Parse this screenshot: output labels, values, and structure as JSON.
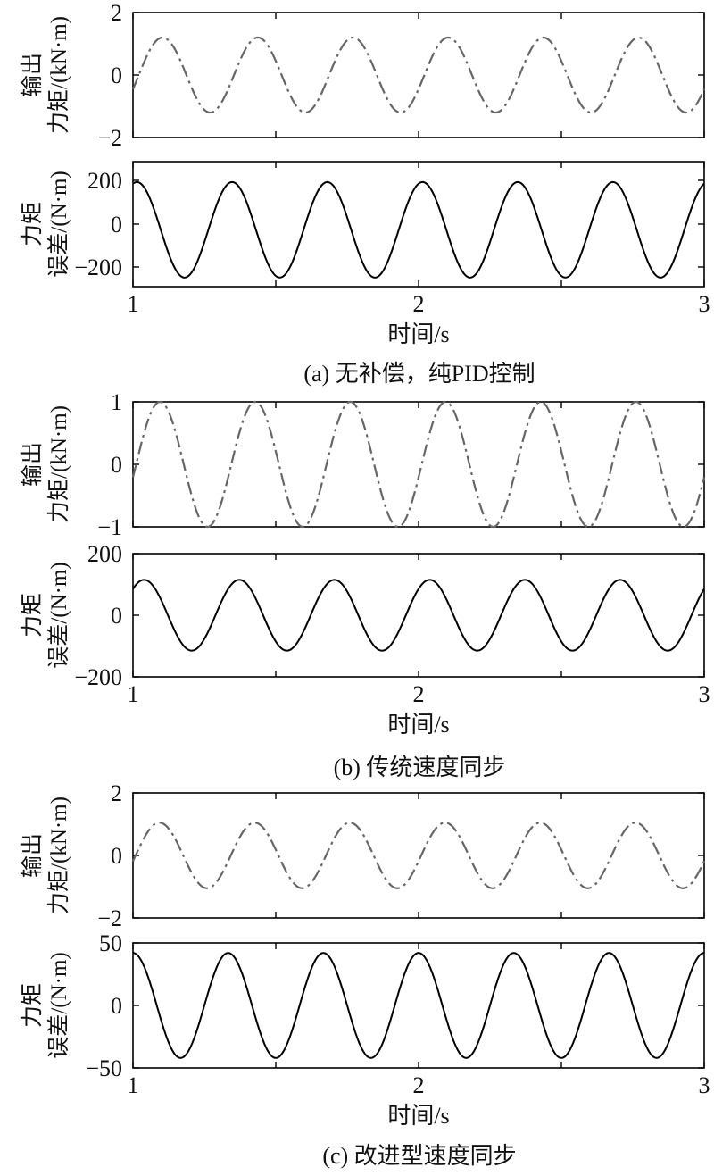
{
  "chart_data": [
    {
      "type": "line",
      "panel": "a-top",
      "ylabel_lines": [
        "输出",
        "力矩/(kN·m)"
      ],
      "xlim": [
        1,
        3
      ],
      "ylim": [
        -2,
        2
      ],
      "yticks": [
        "2",
        "0",
        "−2"
      ],
      "series": [
        {
          "amplitude": 1.2,
          "frequency_hz": 3,
          "phase_deg": -22,
          "style": "dash-dot",
          "color": "#666666"
        }
      ]
    },
    {
      "type": "line",
      "panel": "a-bottom",
      "ylabel_lines": [
        "力矩",
        "误差/(N·m)"
      ],
      "xlim": [
        1,
        3
      ],
      "ylim": [
        -250,
        300
      ],
      "yticks": [
        "200",
        "0",
        "−200"
      ],
      "xticks": [
        "1",
        "2",
        "3"
      ],
      "xlabel": "时间/s",
      "series": [
        {
          "amplitude": 210,
          "frequency_hz": 3,
          "phase_deg": 75,
          "style": "solid",
          "color": "#000000"
        }
      ]
    },
    {
      "type": "line",
      "panel": "b-top",
      "ylabel_lines": [
        "输出",
        "力矩/(kN·m)"
      ],
      "xlim": [
        1,
        3
      ],
      "ylim": [
        -1,
        1
      ],
      "yticks": [
        "1",
        "0",
        "−1"
      ],
      "series": [
        {
          "amplitude": 1.0,
          "frequency_hz": 3,
          "phase_deg": -12,
          "style": "dash-dot",
          "color": "#666666"
        }
      ]
    },
    {
      "type": "line",
      "panel": "b-bottom",
      "ylabel_lines": [
        "力矩",
        "误差/(N·m)"
      ],
      "xlim": [
        1,
        3
      ],
      "ylim": [
        -200,
        200
      ],
      "yticks": [
        "200",
        "0",
        "−200"
      ],
      "xticks": [
        "1",
        "2",
        "3"
      ],
      "xlabel": "时间/s",
      "series": [
        {
          "amplitude": 115,
          "frequency_hz": 3,
          "phase_deg": 48,
          "style": "solid",
          "color": "#000000"
        }
      ]
    },
    {
      "type": "line",
      "panel": "c-top",
      "ylabel_lines": [
        "输出",
        "力矩/(kN·m)"
      ],
      "xlim": [
        1,
        3
      ],
      "ylim": [
        -2,
        2
      ],
      "yticks": [
        "2",
        "0",
        "−2"
      ],
      "series": [
        {
          "amplitude": 1.05,
          "frequency_hz": 3,
          "phase_deg": -10,
          "style": "dash-dot",
          "color": "#666666"
        }
      ]
    },
    {
      "type": "line",
      "panel": "c-bottom",
      "ylabel_lines": [
        "力矩",
        "误差/(N·m)"
      ],
      "xlim": [
        1,
        3
      ],
      "ylim": [
        -50,
        50
      ],
      "yticks": [
        "50",
        "0",
        "−50"
      ],
      "xticks": [
        "1",
        "2",
        "3"
      ],
      "xlabel": "时间/s",
      "series": [
        {
          "amplitude": 42,
          "frequency_hz": 3,
          "phase_deg": 90,
          "style": "solid",
          "color": "#000000"
        }
      ]
    }
  ],
  "captions": [
    "(a) 无补偿，纯PID控制",
    "(b) 传统速度同步",
    "(c) 改进型速度同步"
  ]
}
